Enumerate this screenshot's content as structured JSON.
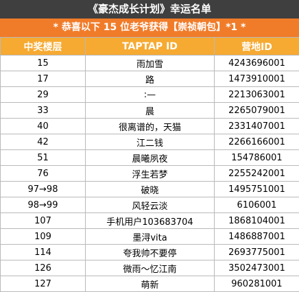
{
  "title": "《豪杰成长计划》幸运名单",
  "banner": "* 恭喜以下 15 位老爷获得【崇祯朝包】*1 *",
  "columns": [
    "中奖楼层",
    "TAPTAP ID",
    "营地ID"
  ],
  "rows": [
    [
      "15",
      "雨加雪",
      "4243696001"
    ],
    [
      "17",
      "路",
      "1473910001"
    ],
    [
      "29",
      ":—",
      "2213063001"
    ],
    [
      "33",
      "晨",
      "2265079001"
    ],
    [
      "40",
      "很离谱的，天猫",
      "2331407001"
    ],
    [
      "42",
      "江二钱",
      "2266166001"
    ],
    [
      "51",
      "晨曦夙夜",
      "154786001"
    ],
    [
      "76",
      "浮生若梦",
      "2255242001"
    ],
    [
      "97→98",
      "破晓",
      "1495751001"
    ],
    [
      "98→99",
      "风轻云淡",
      "6106001"
    ],
    [
      "107",
      "手机用户103683704",
      "1868104001"
    ],
    [
      "109",
      "墨浔vita",
      "1486887001"
    ],
    [
      "114",
      "夸我帅不要停",
      "2693775001"
    ],
    [
      "126",
      "微雨～忆江南",
      "3502473001"
    ],
    [
      "127",
      "萌新",
      "960281001"
    ]
  ]
}
